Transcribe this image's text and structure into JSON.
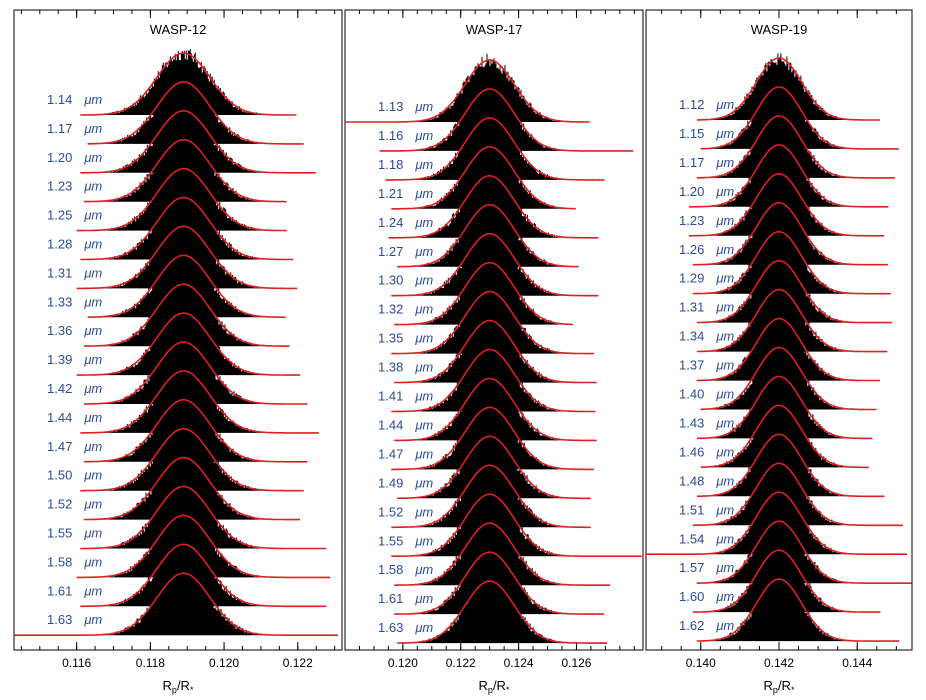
{
  "chart_data": [
    {
      "type": "line",
      "title": "WASP-12",
      "xlabel_main": "R",
      "xlabel_sub1": "p",
      "xlabel_mid": "/R",
      "xlabel_sub2": "*",
      "xlim": [
        0.1143,
        0.1232
      ],
      "xticks": [
        "0.116",
        "0.118",
        "0.120",
        "0.122"
      ],
      "center": 0.1189,
      "sigma": 0.00072,
      "series": [
        {
          "name": "1.14",
          "unit": "μm",
          "xmin": 0.1161,
          "xmax": 0.122
        },
        {
          "name": "1.17",
          "unit": "μm",
          "xmin": 0.1163,
          "xmax": 0.1222
        },
        {
          "name": "1.20",
          "unit": "μm",
          "xmin": 0.1161,
          "xmax": 0.1225
        },
        {
          "name": "1.23",
          "unit": "μm",
          "xmin": 0.1162,
          "xmax": 0.1217
        },
        {
          "name": "1.25",
          "unit": "μm",
          "xmin": 0.116,
          "xmax": 0.1217
        },
        {
          "name": "1.28",
          "unit": "μm",
          "xmin": 0.1161,
          "xmax": 0.1219
        },
        {
          "name": "1.31",
          "unit": "μm",
          "xmin": 0.116,
          "xmax": 0.122
        },
        {
          "name": "1.33",
          "unit": "μm",
          "xmin": 0.1163,
          "xmax": 0.1217
        },
        {
          "name": "1.36",
          "unit": "μm",
          "xmin": 0.1162,
          "xmax": 0.1218
        },
        {
          "name": "1.39",
          "unit": "μm",
          "xmin": 0.116,
          "xmax": 0.1221
        },
        {
          "name": "1.42",
          "unit": "μm",
          "xmin": 0.1162,
          "xmax": 0.1223
        },
        {
          "name": "1.44",
          "unit": "μm",
          "xmin": 0.1161,
          "xmax": 0.1226
        },
        {
          "name": "1.47",
          "unit": "μm",
          "xmin": 0.1162,
          "xmax": 0.1223
        },
        {
          "name": "1.50",
          "unit": "μm",
          "xmin": 0.1161,
          "xmax": 0.1222
        },
        {
          "name": "1.52",
          "unit": "μm",
          "xmin": 0.1162,
          "xmax": 0.1221
        },
        {
          "name": "1.55",
          "unit": "μm",
          "xmin": 0.1161,
          "xmax": 0.1228
        },
        {
          "name": "1.58",
          "unit": "μm",
          "xmin": 0.116,
          "xmax": 0.1229
        },
        {
          "name": "1.61",
          "unit": "μm",
          "xmin": 0.1161,
          "xmax": 0.1228
        },
        {
          "name": "1.63",
          "unit": "μm",
          "xmin": 0.1143,
          "xmax": 0.1231
        }
      ]
    },
    {
      "type": "line",
      "title": "WASP-17",
      "xlabel_main": "R",
      "xlabel_sub1": "p",
      "xlabel_mid": "/R",
      "xlabel_sub2": "*",
      "xlim": [
        0.118,
        0.1283
      ],
      "xticks": [
        "0.120",
        "0.122",
        "0.124",
        "0.126"
      ],
      "center": 0.123,
      "sigma": 0.00085,
      "series": [
        {
          "name": "1.13",
          "unit": "μm",
          "xmin": 0.118,
          "xmax": 0.1265
        },
        {
          "name": "1.16",
          "unit": "μm",
          "xmin": 0.1192,
          "xmax": 0.128
        },
        {
          "name": "1.18",
          "unit": "μm",
          "xmin": 0.1194,
          "xmax": 0.127
        },
        {
          "name": "1.21",
          "unit": "μm",
          "xmin": 0.1196,
          "xmax": 0.126
        },
        {
          "name": "1.24",
          "unit": "μm",
          "xmin": 0.1195,
          "xmax": 0.1268
        },
        {
          "name": "1.27",
          "unit": "μm",
          "xmin": 0.1198,
          "xmax": 0.1261
        },
        {
          "name": "1.30",
          "unit": "μm",
          "xmin": 0.1196,
          "xmax": 0.1268
        },
        {
          "name": "1.32",
          "unit": "μm",
          "xmin": 0.1197,
          "xmax": 0.1259
        },
        {
          "name": "1.35",
          "unit": "μm",
          "xmin": 0.1196,
          "xmax": 0.1266
        },
        {
          "name": "1.38",
          "unit": "μm",
          "xmin": 0.1197,
          "xmax": 0.1267
        },
        {
          "name": "1.41",
          "unit": "μm",
          "xmin": 0.1196,
          "xmax": 0.1267
        },
        {
          "name": "1.44",
          "unit": "μm",
          "xmin": 0.1197,
          "xmax": 0.1267
        },
        {
          "name": "1.47",
          "unit": "μm",
          "xmin": 0.1196,
          "xmax": 0.1266
        },
        {
          "name": "1.49",
          "unit": "μm",
          "xmin": 0.1198,
          "xmax": 0.1265
        },
        {
          "name": "1.52",
          "unit": "μm",
          "xmin": 0.1196,
          "xmax": 0.1265
        },
        {
          "name": "1.55",
          "unit": "μm",
          "xmin": 0.1196,
          "xmax": 0.1283
        },
        {
          "name": "1.58",
          "unit": "μm",
          "xmin": 0.1197,
          "xmax": 0.1272
        },
        {
          "name": "1.61",
          "unit": "μm",
          "xmin": 0.1197,
          "xmax": 0.127
        },
        {
          "name": "1.63",
          "unit": "μm",
          "xmin": 0.1198,
          "xmax": 0.1271
        }
      ]
    },
    {
      "type": "line",
      "title": "WASP-19",
      "xlabel_main": "R",
      "xlabel_sub1": "p",
      "xlabel_mid": "/R",
      "xlabel_sub2": "*",
      "xlim": [
        0.1386,
        0.1454
      ],
      "xticks": [
        "0.140",
        "0.142",
        "0.144"
      ],
      "center": 0.142,
      "sigma": 0.00058,
      "series": [
        {
          "name": "1.12",
          "unit": "μm",
          "xmin": 0.1399,
          "xmax": 0.1446
        },
        {
          "name": "1.15",
          "unit": "μm",
          "xmin": 0.14,
          "xmax": 0.1451
        },
        {
          "name": "1.17",
          "unit": "μm",
          "xmin": 0.1399,
          "xmax": 0.145
        },
        {
          "name": "1.20",
          "unit": "μm",
          "xmin": 0.1397,
          "xmax": 0.1448
        },
        {
          "name": "1.23",
          "unit": "μm",
          "xmin": 0.1397,
          "xmax": 0.1447
        },
        {
          "name": "1.26",
          "unit": "μm",
          "xmin": 0.1398,
          "xmax": 0.1448
        },
        {
          "name": "1.29",
          "unit": "μm",
          "xmin": 0.1398,
          "xmax": 0.1449
        },
        {
          "name": "1.31",
          "unit": "μm",
          "xmin": 0.1399,
          "xmax": 0.1449
        },
        {
          "name": "1.34",
          "unit": "μm",
          "xmin": 0.1399,
          "xmax": 0.1448
        },
        {
          "name": "1.37",
          "unit": "μm",
          "xmin": 0.1399,
          "xmax": 0.1446
        },
        {
          "name": "1.40",
          "unit": "μm",
          "xmin": 0.14,
          "xmax": 0.1445
        },
        {
          "name": "1.43",
          "unit": "μm",
          "xmin": 0.1399,
          "xmax": 0.1444
        },
        {
          "name": "1.46",
          "unit": "μm",
          "xmin": 0.14,
          "xmax": 0.1443
        },
        {
          "name": "1.48",
          "unit": "μm",
          "xmin": 0.1399,
          "xmax": 0.1447
        },
        {
          "name": "1.51",
          "unit": "μm",
          "xmin": 0.1398,
          "xmax": 0.1452
        },
        {
          "name": "1.54",
          "unit": "μm",
          "xmin": 0.1386,
          "xmax": 0.1453
        },
        {
          "name": "1.57",
          "unit": "μm",
          "xmin": 0.1399,
          "xmax": 0.1454
        },
        {
          "name": "1.60",
          "unit": "μm",
          "xmin": 0.1398,
          "xmax": 0.1446
        },
        {
          "name": "1.62",
          "unit": "μm",
          "xmin": 0.1399,
          "xmax": 0.1451
        }
      ]
    }
  ],
  "colors": {
    "fit_line": "#e02020",
    "data_hist": "#000000",
    "label_text": "#2a4b9a",
    "axis": "#000000"
  }
}
